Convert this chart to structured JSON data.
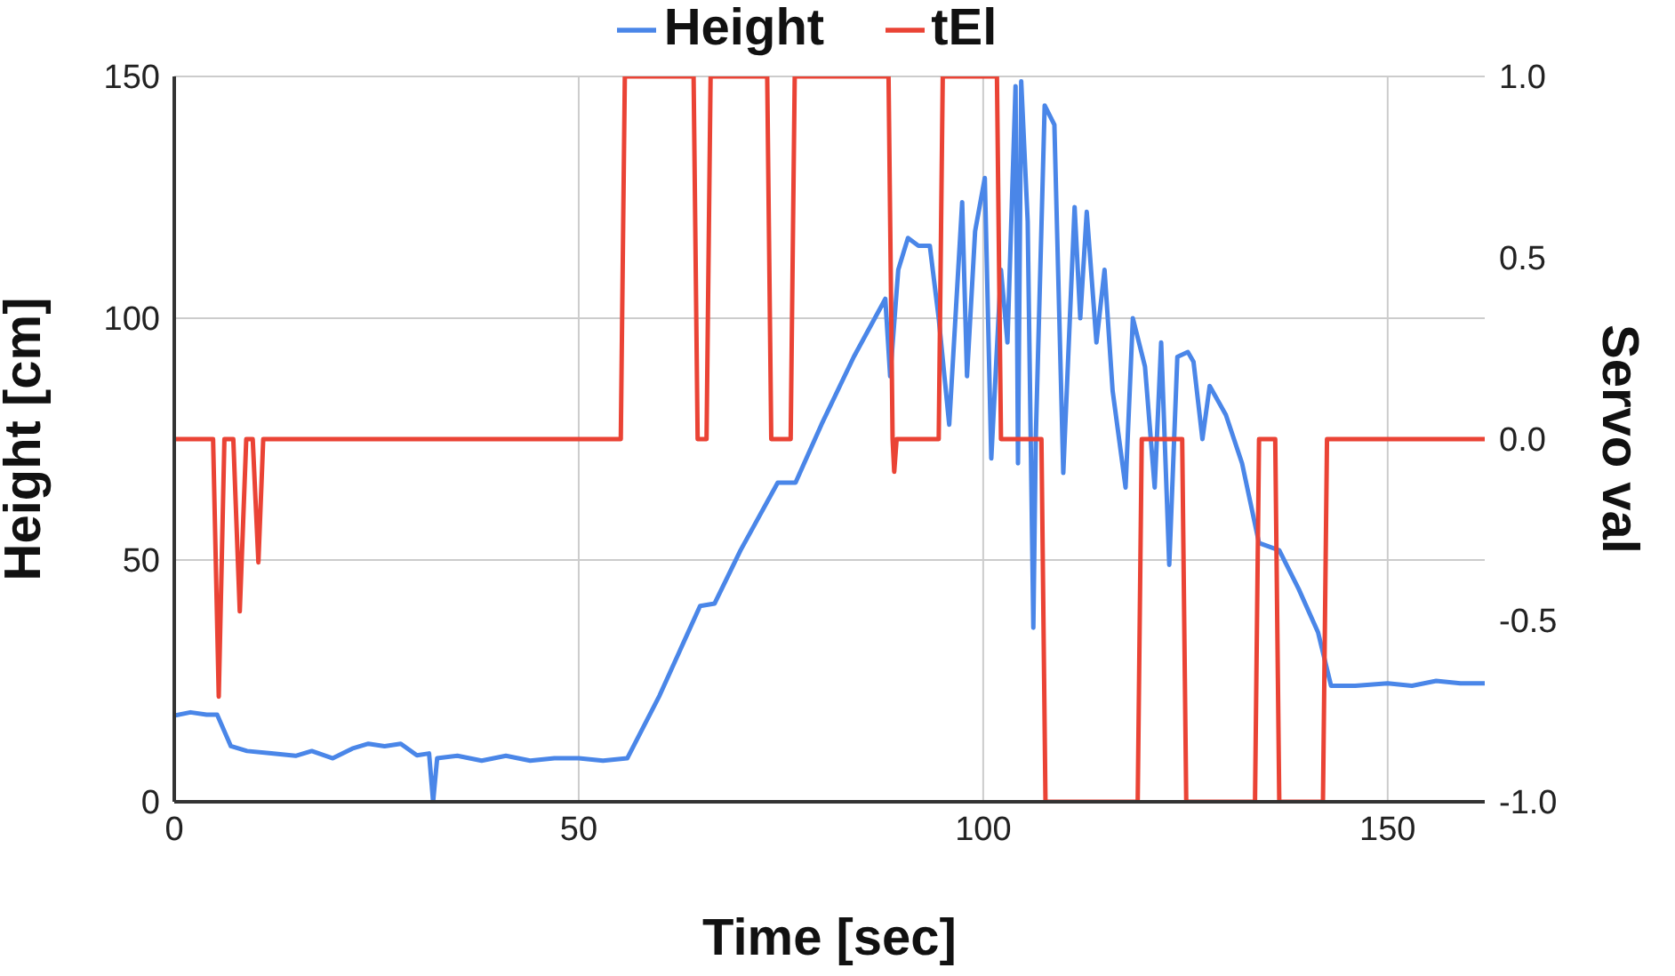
{
  "chart_data": {
    "type": "line",
    "xlabel": "Time [sec]",
    "ylabel": "Height [cm]",
    "y2label": "Servo val",
    "xlim": [
      0,
      162
    ],
    "xticks": [
      0,
      50,
      100,
      150
    ],
    "ylim": [
      0,
      150
    ],
    "yticks": [
      0,
      50,
      100,
      150
    ],
    "y2lim": [
      -1,
      1
    ],
    "y2ticks": [
      {
        "value": -1,
        "label": "-1.0"
      },
      {
        "value": -0.5,
        "label": "-0.5"
      },
      {
        "value": 0,
        "label": "0.0"
      },
      {
        "value": 0.5,
        "label": "0.5"
      },
      {
        "value": 1,
        "label": "1.0"
      }
    ],
    "grid": true,
    "legend": "top",
    "marker": "none",
    "line_style": "solid",
    "series": [
      {
        "name": "Height",
        "color": "#4a86e8",
        "x": [
          0,
          2,
          4,
          5.3,
          7,
          9,
          12,
          15,
          17,
          19.6,
          22,
          24,
          26,
          28,
          30,
          31.5,
          32,
          32.5,
          35,
          38,
          41,
          44,
          47,
          50,
          53,
          56,
          60,
          65,
          66.8,
          70,
          74.6,
          76.8,
          80,
          84,
          87.9,
          88.5,
          89.5,
          90.7,
          92,
          93.4,
          94.5,
          95.8,
          97.4,
          98,
          99,
          100.2,
          101,
          102.2,
          103,
          104,
          104.3,
          104.7,
          105.5,
          106.2,
          106.5,
          107.6,
          108.8,
          109.9,
          111.3,
          112,
          112.8,
          114,
          115,
          116,
          117.6,
          118.5,
          119.4,
          120,
          121.2,
          122,
          123,
          124,
          125.3,
          126,
          127.1,
          128,
          130,
          132,
          134.1,
          136.6,
          139,
          141.4,
          143,
          146,
          150,
          153,
          156,
          159,
          162
        ],
        "values": [
          17.8,
          18.5,
          18,
          18,
          11.5,
          10.5,
          10,
          9.5,
          10.5,
          9,
          11,
          12,
          11.5,
          12,
          9.6,
          10,
          0,
          9,
          9.5,
          8.5,
          9.5,
          8.5,
          9,
          9,
          8.5,
          9,
          22,
          40.5,
          41,
          52,
          66,
          66,
          78,
          92,
          104,
          88,
          110,
          116.6,
          115,
          115,
          100,
          78,
          124,
          88,
          118,
          129,
          71,
          110,
          95,
          148,
          70,
          149,
          120,
          36,
          75,
          144,
          140,
          68,
          123,
          100,
          122,
          95,
          110,
          85,
          65,
          100,
          94,
          90,
          65,
          95,
          49,
          92,
          93,
          91,
          75,
          86,
          80,
          70,
          53.5,
          52,
          44,
          35,
          24,
          24,
          24.5,
          24,
          25,
          24.5,
          24.5
        ]
      },
      {
        "name": "tEl",
        "color": "#ea4335",
        "axis": "y2",
        "x": [
          0,
          4.8,
          5.5,
          6.2,
          7.3,
          8.1,
          8.9,
          9.7,
          10.4,
          11,
          55.2,
          55.7,
          64.2,
          64.7,
          65.8,
          66.3,
          73.3,
          73.8,
          76.2,
          76.7,
          88.3,
          88.8,
          89,
          89.3,
          94.5,
          95,
          101.7,
          102.2,
          107.2,
          107.7,
          119.1,
          119.6,
          124.6,
          125.1,
          133.6,
          134.1,
          136.1,
          136.6,
          142,
          142.5,
          162
        ],
        "values": [
          0,
          0,
          -0.71,
          0,
          0,
          -0.475,
          0,
          0,
          -0.34,
          0,
          0,
          1,
          1,
          0,
          0,
          1,
          1,
          0,
          0,
          1,
          1,
          0,
          -0.09,
          0,
          0,
          1,
          1,
          0,
          0,
          -1,
          -1,
          0,
          0,
          -1,
          -1,
          0,
          0,
          -1,
          -1,
          0,
          0
        ]
      }
    ]
  }
}
